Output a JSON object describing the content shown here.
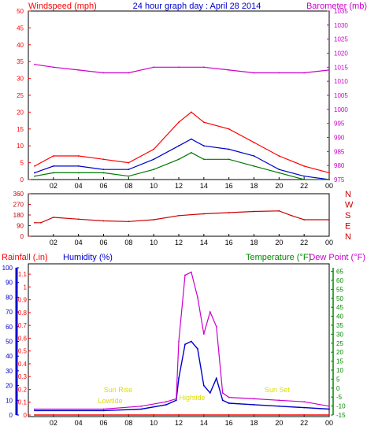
{
  "header": {
    "title": "24 hour graph day : April 28 2014",
    "left_label": "Windspeed (mph)",
    "right_label": "Barometer (mb)"
  },
  "direction_panel": {
    "compass_labels": [
      "N",
      "W",
      "S",
      "E",
      "N"
    ]
  },
  "bottom_header": {
    "rainfall_label": "Rainfall (.in)",
    "humidity_label": "Humidity (%)",
    "temperature_label": "Temperature (°F)",
    "dewpoint_label": "Dew Point (°F)"
  },
  "annotations": {
    "sun_rise": "Sun Rise",
    "lowtide": "Lowtide",
    "hightide": "Hightide",
    "sun_set": "Sun Set"
  },
  "colors": {
    "wind_gust": "#ff0000",
    "wind_avg": "#0000cc",
    "wind_green": "#007700",
    "barometer": "#cc00cc",
    "direction": "#cc0000",
    "humidity": "#0000cc",
    "temperature": "#008800",
    "dewpoint": "#cc00cc",
    "rainfall": "#ff0000",
    "annotation": "#dddd00"
  },
  "chart_data": [
    {
      "type": "line",
      "panel": "wind_barometer",
      "x_ticks": [
        "02",
        "04",
        "06",
        "08",
        "10",
        "12",
        "14",
        "16",
        "18",
        "20",
        "22",
        "00"
      ],
      "y_left_ticks": [
        0,
        5,
        10,
        15,
        20,
        25,
        30,
        35,
        40,
        45,
        50
      ],
      "y_right_ticks": [
        975,
        980,
        985,
        990,
        995,
        1000,
        1005,
        1010,
        1015,
        1020,
        1025,
        1030,
        1035
      ],
      "ylim_left": [
        0,
        50
      ],
      "ylim_right": [
        975,
        1035
      ],
      "series": [
        {
          "hours": [
            0.5,
            2,
            4,
            6,
            8,
            10,
            12,
            13,
            14,
            16,
            18,
            20,
            22,
            24
          ],
          "values": [
            4,
            7,
            7,
            6,
            5,
            9,
            17,
            20,
            17,
            15,
            11,
            7,
            4,
            2
          ]
        },
        {
          "hours": [
            0.5,
            2,
            4,
            6,
            8,
            10,
            12,
            13,
            14,
            16,
            18,
            20,
            22,
            24
          ],
          "values": [
            2,
            4,
            4,
            3,
            3,
            6,
            10,
            12,
            10,
            9,
            7,
            3,
            1,
            0
          ]
        },
        {
          "hours": [
            0.5,
            2,
            4,
            6,
            8,
            10,
            12,
            13,
            14,
            16,
            18,
            20,
            22,
            24
          ],
          "values": [
            1,
            2,
            2,
            2,
            1,
            3,
            6,
            8,
            6,
            6,
            4,
            2,
            0,
            0
          ]
        },
        {
          "hours": [
            0.5,
            2,
            4,
            6,
            8,
            10,
            12,
            14,
            16,
            18,
            20,
            22,
            24
          ],
          "values": [
            1016,
            1015,
            1014,
            1013,
            1013,
            1015,
            1015,
            1015,
            1014,
            1013,
            1013,
            1013,
            1014
          ]
        }
      ]
    },
    {
      "type": "line",
      "panel": "wind_direction",
      "x_ticks": [
        "02",
        "04",
        "06",
        "08",
        "10",
        "12",
        "14",
        "16",
        "18",
        "20",
        "22",
        "00"
      ],
      "y_ticks": [
        0,
        90,
        180,
        270,
        360
      ],
      "ylim": [
        0,
        360
      ],
      "series": [
        {
          "hours": [
            0.5,
            1,
            2,
            4,
            6,
            8,
            10,
            12,
            14,
            16,
            18,
            20,
            21,
            22,
            24
          ],
          "values": [
            115,
            115,
            160,
            145,
            130,
            125,
            140,
            175,
            190,
            200,
            210,
            215,
            175,
            140,
            140
          ]
        }
      ]
    },
    {
      "type": "line",
      "panel": "rain_humidity_temp",
      "x_ticks": [
        "02",
        "04",
        "06",
        "08",
        "10",
        "12",
        "14",
        "16",
        "18",
        "20",
        "22",
        "00"
      ],
      "y_left_ticks": [
        0,
        10,
        20,
        30,
        40,
        50,
        60,
        70,
        80,
        90,
        100
      ],
      "y_rain_ticks": [
        0,
        0.1,
        0.2,
        0.3,
        0.4,
        0.5,
        0.6,
        0.7,
        0.8,
        0.9,
        1,
        1.1
      ],
      "y_right_ticks": [
        -15,
        -10,
        -5,
        0,
        5,
        10,
        15,
        20,
        25,
        30,
        35,
        40,
        45,
        50,
        55,
        60,
        65
      ],
      "ylim_left": [
        0,
        100
      ],
      "ylim_rain": [
        0,
        1.15
      ],
      "ylim_right": [
        -15,
        67
      ],
      "series": [
        {
          "hours": [
            0.5,
            6,
            9,
            11,
            11.8,
            12,
            12.5,
            13,
            13.5,
            14,
            14.5,
            15,
            15.5,
            16,
            18,
            20,
            22,
            24
          ],
          "values": [
            3,
            3,
            4,
            7,
            10,
            25,
            48,
            50,
            45,
            20,
            15,
            25,
            10,
            8,
            7,
            6,
            5,
            4
          ]
        },
        {
          "hours": [
            0.5,
            6,
            9,
            11,
            11.8,
            12,
            12.5,
            13,
            13.5,
            14,
            14.5,
            15,
            15.5,
            16,
            18,
            20,
            22,
            24
          ],
          "values": [
            4,
            4,
            6,
            9,
            11,
            50,
            95,
            97,
            80,
            55,
            70,
            60,
            15,
            12,
            11,
            10,
            9,
            6
          ]
        },
        {
          "hours": [
            0.5,
            24
          ],
          "values": [
            0,
            0
          ]
        }
      ]
    }
  ]
}
